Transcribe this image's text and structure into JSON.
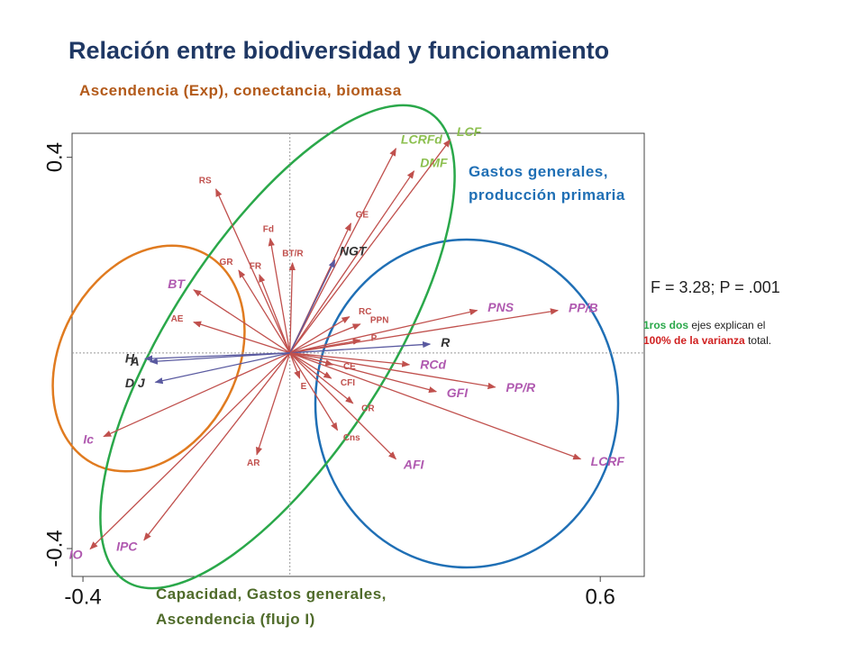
{
  "chart_data": {
    "type": "biplot",
    "title": "Relación entre biodiversidad y funcionamiento",
    "xlim": [
      -0.421,
      0.685
    ],
    "ylim": [
      -0.457,
      0.449
    ],
    "xticks": [
      -0.4,
      0.6
    ],
    "yticks": [
      -0.4,
      0.4
    ],
    "groups": [
      {
        "label": "Ascendencia (Exp), conectancia, biomasa",
        "color": "#b35a1a"
      },
      {
        "label": "Gastos generales, producción primaria",
        "color": "#1f6fb5"
      },
      {
        "label": "Capacidad, Gastos generales, Ascendencia (flujo I)",
        "color": "#4f6b2a"
      }
    ],
    "statistic": "F = 3.28; P = .001",
    "note": {
      "part1": "1ros dos",
      "part2": "ejes explican el",
      "part3": "100% de la varianza",
      "part4": "total."
    },
    "vectors": [
      {
        "label": "RS",
        "x": -0.143,
        "y": 0.335,
        "color": "#c0504d",
        "label_color": "#c0504d"
      },
      {
        "label": "Fd",
        "x": -0.038,
        "y": 0.234,
        "color": "#c0504d",
        "label_color": "#c0504d"
      },
      {
        "label": "BT/R",
        "x": 0.005,
        "y": 0.184,
        "color": "#c0504d",
        "label_color": "#c0504d"
      },
      {
        "label": "GE",
        "x": 0.118,
        "y": 0.265,
        "color": "#c0504d",
        "label_color": "#c0504d"
      },
      {
        "label": "DMF",
        "x": 0.24,
        "y": 0.372,
        "color": "#c0504d",
        "label_color": "#8cbf4f"
      },
      {
        "label": "LCRFd",
        "x": 0.205,
        "y": 0.418,
        "color": "#c0504d",
        "label_color": "#8cbf4f"
      },
      {
        "label": "LCF",
        "x": 0.31,
        "y": 0.436,
        "color": "#c0504d",
        "label_color": "#8cbf4f"
      },
      {
        "label": "NGT",
        "x": 0.087,
        "y": 0.19,
        "color": "#5a5aa0",
        "label_color": "#333333"
      },
      {
        "label": "GR",
        "x": -0.099,
        "y": 0.169,
        "color": "#c0504d",
        "label_color": "#c0504d"
      },
      {
        "label": "FR",
        "x": -0.059,
        "y": 0.16,
        "color": "#c0504d",
        "label_color": "#c0504d"
      },
      {
        "label": "BT",
        "x": -0.186,
        "y": 0.129,
        "color": "#c0504d",
        "label_color": "#b05ab0"
      },
      {
        "label": "AE",
        "x": -0.186,
        "y": 0.063,
        "color": "#c0504d",
        "label_color": "#c0504d"
      },
      {
        "label": "RC",
        "x": 0.115,
        "y": 0.074,
        "color": "#c0504d",
        "label_color": "#c0504d"
      },
      {
        "label": "PPN",
        "x": 0.136,
        "y": 0.059,
        "color": "#c0504d",
        "label_color": "#c0504d"
      },
      {
        "label": "P",
        "x": 0.136,
        "y": 0.026,
        "color": "#c0504d",
        "label_color": "#c0504d"
      },
      {
        "label": "PNS",
        "x": 0.362,
        "y": 0.087,
        "color": "#c0504d",
        "label_color": "#b05ab0"
      },
      {
        "label": "PP/B",
        "x": 0.518,
        "y": 0.087,
        "color": "#c0504d",
        "label_color": "#b05ab0"
      },
      {
        "label": "R",
        "x": 0.271,
        "y": 0.018,
        "color": "#5a5aa0",
        "label_color": "#333333"
      },
      {
        "label": "RCd",
        "x": 0.231,
        "y": -0.024,
        "color": "#c0504d",
        "label_color": "#b05ab0"
      },
      {
        "label": "GFI",
        "x": 0.283,
        "y": -0.079,
        "color": "#c0504d",
        "label_color": "#b05ab0"
      },
      {
        "label": "PP/R",
        "x": 0.397,
        "y": -0.07,
        "color": "#c0504d",
        "label_color": "#b05ab0"
      },
      {
        "label": "LCRF",
        "x": 0.562,
        "y": -0.217,
        "color": "#c0504d",
        "label_color": "#b05ab0"
      },
      {
        "label": "CE",
        "x": 0.083,
        "y": -0.024,
        "color": "#c0504d",
        "label_color": "#c0504d"
      },
      {
        "label": "CFI",
        "x": 0.08,
        "y": -0.052,
        "color": "#c0504d",
        "label_color": "#c0504d"
      },
      {
        "label": "E",
        "x": 0.019,
        "y": -0.052,
        "color": "#c0504d",
        "label_color": "#c0504d"
      },
      {
        "label": "CR",
        "x": 0.122,
        "y": -0.103,
        "color": "#c0504d",
        "label_color": "#c0504d"
      },
      {
        "label": "Cns",
        "x": 0.092,
        "y": -0.158,
        "color": "#c0504d",
        "label_color": "#c0504d"
      },
      {
        "label": "AFI",
        "x": 0.205,
        "y": -0.217,
        "color": "#c0504d",
        "label_color": "#b05ab0"
      },
      {
        "label": "AR",
        "x": -0.064,
        "y": -0.208,
        "color": "#c0504d",
        "label_color": "#c0504d"
      },
      {
        "label": "Ic",
        "x": -0.36,
        "y": -0.171,
        "color": "#c0504d",
        "label_color": "#b05ab0"
      },
      {
        "label": "IO",
        "x": -0.386,
        "y": -0.401,
        "color": "#c0504d",
        "label_color": "#b05ab0"
      },
      {
        "label": "IPC",
        "x": -0.282,
        "y": -0.383,
        "color": "#c0504d",
        "label_color": "#b05ab0"
      },
      {
        "label": "H",
        "x": -0.28,
        "y": -0.012,
        "color": "#5a5aa0",
        "label_color": "#333333"
      },
      {
        "label": "A",
        "x": -0.27,
        "y": -0.018,
        "color": "#5a5aa0",
        "label_color": "#333333"
      },
      {
        "label": "D J",
        "x": -0.26,
        "y": -0.06,
        "color": "#5a5aa0",
        "label_color": "#333333"
      }
    ]
  }
}
